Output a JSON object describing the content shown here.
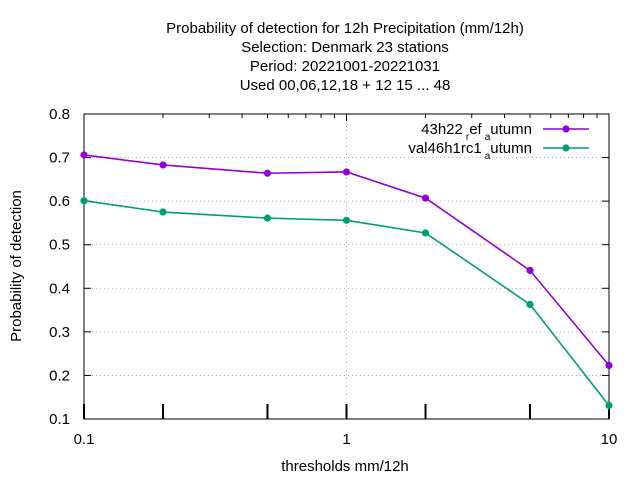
{
  "chart_data": {
    "type": "line",
    "title_lines": [
      "Probability of detection  for 12h Precipitation (mm/12h)",
      "Selection: Denmark     23 stations",
      "Period: 20221001-20221031",
      "Used  00,06,12,18  + 12 15 ... 48"
    ],
    "xlabel": "thresholds mm/12h",
    "ylabel": "Probability of detection",
    "x_scale": "log",
    "xlim": [
      0.1,
      10
    ],
    "ylim": [
      0.1,
      0.8
    ],
    "x_ticks": [
      {
        "value": 0.1,
        "label": "0.1"
      },
      {
        "value": 1,
        "label": "1"
      },
      {
        "value": 10,
        "label": "10"
      }
    ],
    "y_ticks": [
      {
        "value": 0.1,
        "label": "0.1"
      },
      {
        "value": 0.2,
        "label": "0.2"
      },
      {
        "value": 0.3,
        "label": "0.3"
      },
      {
        "value": 0.4,
        "label": "0.4"
      },
      {
        "value": 0.5,
        "label": "0.5"
      },
      {
        "value": 0.6,
        "label": "0.6"
      },
      {
        "value": 0.7,
        "label": "0.7"
      },
      {
        "value": 0.8,
        "label": "0.8"
      }
    ],
    "grid": true,
    "legend_position": "top-right",
    "x": [
      0.1,
      0.2,
      0.5,
      1,
      2,
      5,
      10
    ],
    "series": [
      {
        "name_main": "43h22",
        "name_sub1": "r",
        "name_mid": "ef",
        "name_sub2": "a",
        "name_end": "utumn",
        "color": "#9400d3",
        "values": [
          0.706,
          0.683,
          0.664,
          0.667,
          0.607,
          0.441,
          0.223
        ]
      },
      {
        "name_main": "val46h1rc1",
        "name_sub1": "",
        "name_mid": "",
        "name_sub2": "a",
        "name_end": "utumn",
        "color": "#009e73",
        "values": [
          0.601,
          0.575,
          0.561,
          0.556,
          0.527,
          0.363,
          0.131
        ]
      }
    ],
    "bottom_bars": [
      0.1,
      0.2,
      0.5,
      1,
      2,
      5,
      10
    ]
  }
}
